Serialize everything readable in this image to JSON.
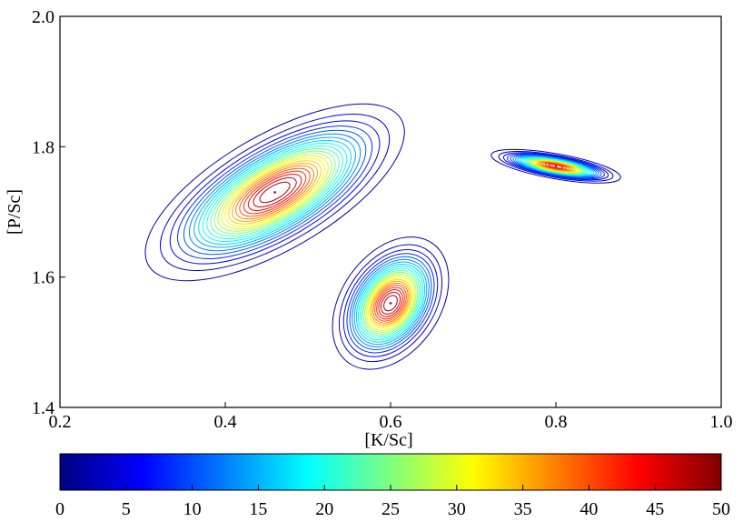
{
  "chart_data": {
    "type": "contour",
    "title": "",
    "xlabel": "[K/Sc]",
    "ylabel": "[P/Sc]",
    "xlim": [
      0.2,
      1.0
    ],
    "ylim": [
      1.4,
      2.0
    ],
    "x_ticks": [
      "0.2",
      "0.4",
      "0.6",
      "0.8",
      "1.0"
    ],
    "y_ticks": [
      "1.4",
      "1.6",
      "1.8",
      "2.0"
    ],
    "grid": false,
    "colormap": "jet",
    "colorbar": {
      "range": [
        0,
        50
      ],
      "ticks": [
        "0",
        "5",
        "10",
        "15",
        "20",
        "25",
        "30",
        "35",
        "40",
        "45",
        "50"
      ],
      "placement": "bottom"
    },
    "regions": [
      {
        "peak": [
          0.46,
          1.73
        ],
        "peak_value": 50,
        "spread": [
          0.07,
          0.035
        ],
        "angle": -30
      },
      {
        "peak": [
          0.6,
          1.56
        ],
        "peak_value": 50,
        "spread": [
          0.035,
          0.03
        ],
        "angle": -55
      },
      {
        "peak": [
          0.8,
          1.77
        ],
        "peak_value": 45,
        "spread": [
          0.006,
          0.04
        ],
        "angle": -80
      }
    ]
  },
  "colors": {
    "cmap": [
      "#00007f",
      "#0000ff",
      "#007fff",
      "#00ffff",
      "#7fff7f",
      "#ffff00",
      "#ff7f00",
      "#ff0000",
      "#7f0000"
    ]
  }
}
